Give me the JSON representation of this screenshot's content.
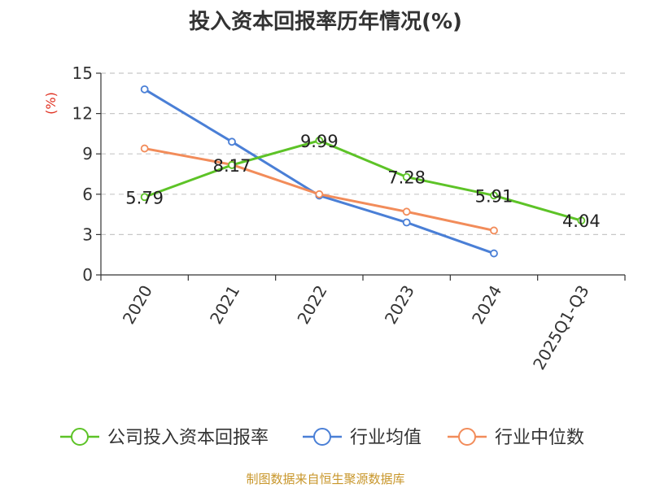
{
  "chart_data": {
    "type": "line",
    "title": "投入资本回报率历年情况(%)",
    "ylabel": "(%)",
    "xlabel": "",
    "categories": [
      "2020",
      "2021",
      "2022",
      "2023",
      "2024",
      "2025Q1-Q3"
    ],
    "ylim": [
      0,
      15
    ],
    "yticks": [
      0,
      3,
      6,
      9,
      12,
      15
    ],
    "grid": true,
    "legend_position": "bottom",
    "series": [
      {
        "name": "公司投入资本回报率",
        "color": "#5dc327",
        "values": [
          5.79,
          8.17,
          9.99,
          7.28,
          5.91,
          4.04
        ],
        "labels": [
          "5.79",
          "8.17",
          "9.99",
          "7.28",
          "5.91",
          "4.04"
        ]
      },
      {
        "name": "行业均值",
        "color": "#4a7fd6",
        "values": [
          13.8,
          9.9,
          5.9,
          3.9,
          1.6,
          null
        ]
      },
      {
        "name": "行业中位数",
        "color": "#f28c5a",
        "values": [
          9.4,
          8.2,
          6.0,
          4.7,
          3.3,
          null
        ]
      }
    ]
  },
  "source": "制图数据来自恒生聚源数据库"
}
